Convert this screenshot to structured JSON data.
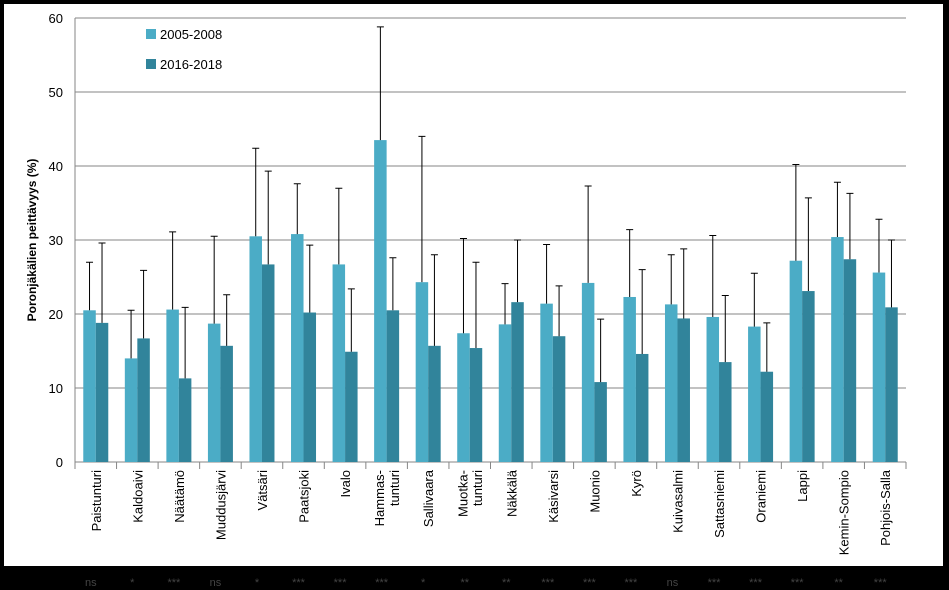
{
  "chart_data": {
    "type": "bar",
    "y_label": "Poronjäkälien peittävyys (%)",
    "categories": [
      "Paistunturi",
      "Kaldoaivi",
      "Näätämö",
      "Muddusjärvi",
      "Vätsäri",
      "Paatsjoki",
      "Ivalo",
      "Hammas-\ntunturi",
      "Sallivaara",
      "Muotka-\ntunturi",
      "Näkkälä",
      "Käsivarsi",
      "Muonio",
      "Kyrö",
      "Kuivasalmi",
      "Sattasniemi",
      "Oraniemi",
      "Lappi",
      "Kemin-Sompio",
      "Pohjois-Salla"
    ],
    "series": [
      {
        "name": "2005-2008",
        "color": "#4bacc6",
        "values": [
          20.5,
          14,
          20.6,
          18.7,
          30.5,
          30.8,
          26.7,
          43.5,
          24.3,
          17.4,
          18.6,
          21.4,
          24.2,
          22.3,
          21.3,
          19.6,
          18.3,
          27.2,
          30.4,
          25.6
        ],
        "errors": [
          6.5,
          6.5,
          10.5,
          11.8,
          11.9,
          6.8,
          10.3,
          15.3,
          19.7,
          12.8,
          5.5,
          8,
          13.1,
          9.1,
          6.7,
          11,
          7.2,
          13,
          7.4,
          7.2
        ]
      },
      {
        "name": "2016-2018",
        "color": "#31849b",
        "values": [
          18.8,
          16.7,
          11.3,
          15.7,
          26.7,
          20.2,
          14.9,
          20.5,
          15.7,
          15.4,
          21.6,
          17,
          10.8,
          14.6,
          19.4,
          13.5,
          12.2,
          23.1,
          27.4,
          20.9
        ],
        "errors": [
          10.8,
          9.2,
          9.6,
          6.9,
          12.6,
          9.1,
          8.5,
          7.1,
          12.3,
          11.6,
          8.4,
          6.8,
          8.5,
          11.4,
          9.4,
          9,
          6.6,
          12.6,
          8.9,
          9.1
        ]
      }
    ],
    "significance": [
      "ns",
      "*",
      "***",
      "ns",
      "*",
      "***",
      "***",
      "***",
      "*",
      "**",
      "**",
      "***",
      "***",
      "***",
      "ns",
      "***",
      "***",
      "***",
      "**",
      "***"
    ],
    "ylim": [
      0,
      60
    ],
    "yticks": [
      0,
      10,
      20,
      30,
      40,
      50,
      60
    ],
    "grid": true,
    "legend": "top-left"
  }
}
